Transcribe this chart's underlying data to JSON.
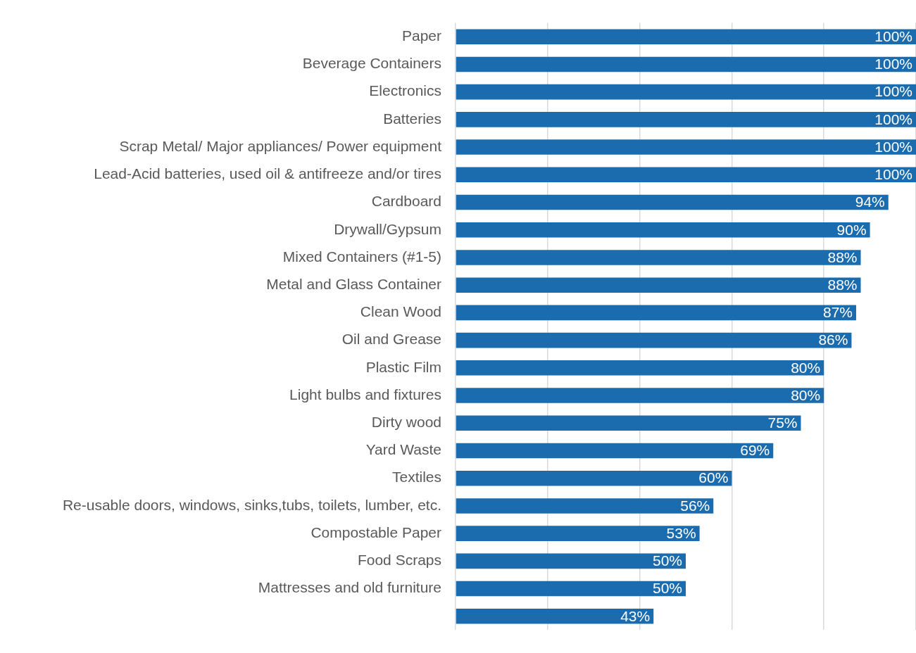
{
  "chart_data": {
    "type": "bar",
    "orientation": "horizontal",
    "categories": [
      "Paper",
      "Beverage Containers",
      "Electronics",
      "Batteries",
      "Scrap Metal/ Major appliances/ Power equipment",
      "Lead-Acid batteries, used oil & antifreeze and/or tires",
      "Cardboard",
      "Drywall/Gypsum",
      "Mixed Containers (#1-5)",
      "Metal and Glass Container",
      "Clean Wood",
      "Oil and Grease",
      "Plastic Film",
      "Light bulbs and fixtures",
      "Dirty wood",
      "Yard Waste",
      "Textiles",
      "Re-usable doors, windows, sinks,tubs, toilets, lumber, etc.",
      "Compostable Paper",
      "Food Scraps",
      "Mattresses and old furniture",
      null
    ],
    "values": [
      100,
      100,
      100,
      100,
      100,
      100,
      94,
      90,
      88,
      88,
      87,
      86,
      80,
      80,
      75,
      69,
      60,
      56,
      53,
      50,
      50,
      43
    ],
    "value_labels": [
      "100%",
      "100%",
      "100%",
      "100%",
      "100%",
      "100%",
      "94%",
      "90%",
      "88%",
      "88%",
      "87%",
      "86%",
      "80%",
      "80%",
      "75%",
      "69%",
      "60%",
      "56%",
      "53%",
      "50%",
      "50%",
      "43%"
    ],
    "color": "#1b6cae",
    "xlim": [
      0,
      100
    ],
    "xticks": [
      {
        "value": 0,
        "label": null
      },
      {
        "value": 20,
        "label": null
      },
      {
        "value": 40,
        "label": null
      },
      {
        "value": 60,
        "label": null
      },
      {
        "value": 80,
        "label": null
      },
      {
        "value": 100,
        "label": null
      }
    ],
    "grid": "x",
    "tick_labels": "y",
    "legend": false
  }
}
